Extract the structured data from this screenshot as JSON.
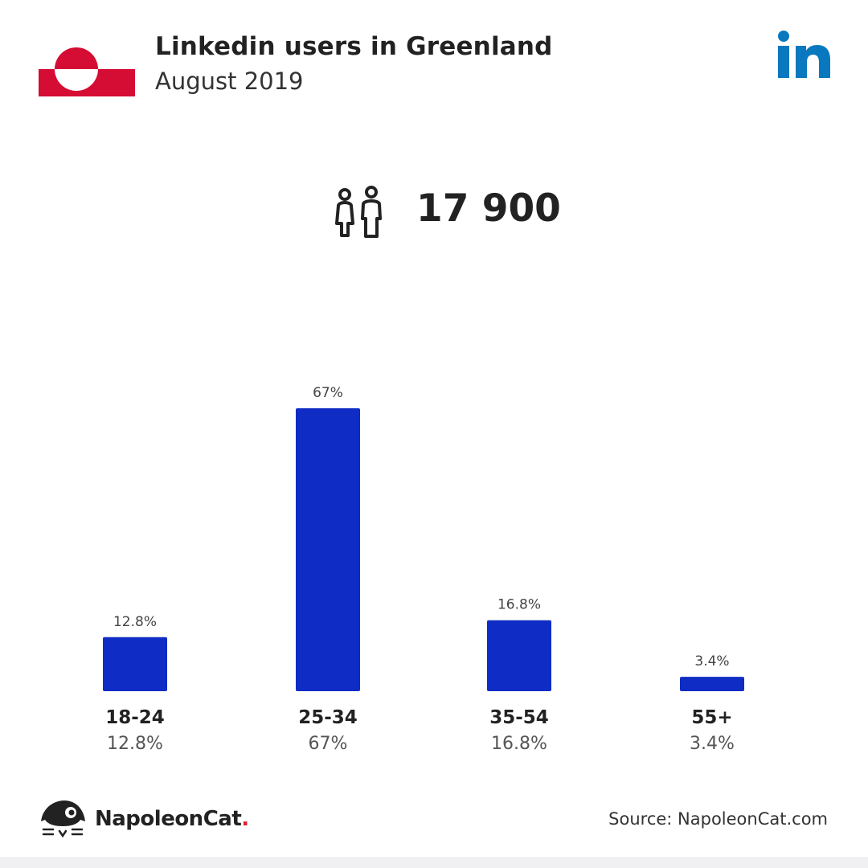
{
  "header": {
    "title": "Linkedin users in Greenland",
    "subtitle": "August 2019",
    "flag_icon": "greenland-flag-icon",
    "brand_icon": "linkedin-icon"
  },
  "summary": {
    "icon": "users-icon",
    "total_users": "17 900"
  },
  "chart_data": {
    "type": "bar",
    "categories": [
      "18-24",
      "25-34",
      "35-54",
      "55+"
    ],
    "values": [
      12.8,
      67,
      16.8,
      3.4
    ],
    "value_labels": [
      "12.8%",
      "67%",
      "16.8%",
      "3.4%"
    ],
    "title": "",
    "xlabel": "",
    "ylabel": "",
    "ylim": [
      0,
      67
    ],
    "grid": false,
    "legend": "none",
    "bar_color": "#0f2cc4"
  },
  "colors": {
    "flag_red": "#d50c33",
    "linkedin_blue": "#0a78bf",
    "bar": "#0f2cc4",
    "brand_dot": "#e0202c"
  },
  "footer": {
    "brand_name": "NapoleonCat",
    "brand_dot": ".",
    "brand_icon": "napoleoncat-logo-icon",
    "source": "Source: NapoleonCat.com"
  }
}
